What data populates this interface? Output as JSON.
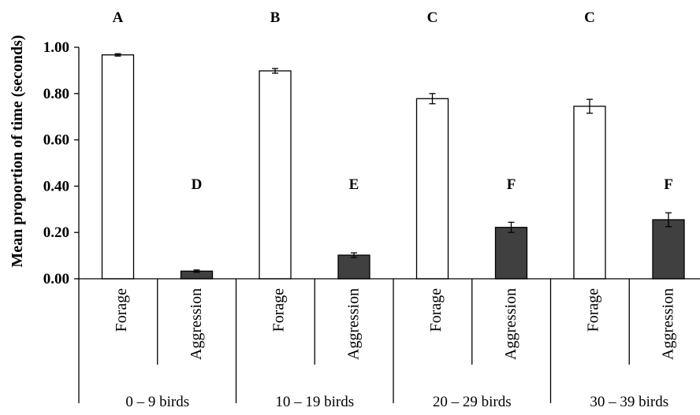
{
  "chart_data": {
    "type": "bar",
    "ylabel": "Mean proportion of time (seconds)",
    "ylim": [
      0,
      1.0
    ],
    "yticks": [
      "0.00",
      "0.20",
      "0.40",
      "0.60",
      "0.80",
      "1.00"
    ],
    "grid": false,
    "groups": [
      {
        "label": "0 – 9 birds",
        "bars": [
          {
            "category": "Forage",
            "value": 0.967,
            "error": 0.005,
            "letter": "A",
            "fill": "#ffffff"
          },
          {
            "category": "Aggression",
            "value": 0.033,
            "error": 0.005,
            "letter": "D",
            "fill": "#404040"
          }
        ]
      },
      {
        "label": "10 – 19 birds",
        "bars": [
          {
            "category": "Forage",
            "value": 0.898,
            "error": 0.01,
            "letter": "B",
            "fill": "#ffffff"
          },
          {
            "category": "Aggression",
            "value": 0.102,
            "error": 0.01,
            "letter": "E",
            "fill": "#404040"
          }
        ]
      },
      {
        "label": "20 – 29 birds",
        "bars": [
          {
            "category": "Forage",
            "value": 0.778,
            "error": 0.022,
            "letter": "C",
            "fill": "#ffffff"
          },
          {
            "category": "Aggression",
            "value": 0.222,
            "error": 0.022,
            "letter": "F",
            "fill": "#404040"
          }
        ]
      },
      {
        "label": "30 – 39 birds",
        "bars": [
          {
            "category": "Forage",
            "value": 0.745,
            "error": 0.03,
            "letter": "C",
            "fill": "#ffffff"
          },
          {
            "category": "Aggression",
            "value": 0.255,
            "error": 0.03,
            "letter": "F",
            "fill": "#404040"
          }
        ]
      }
    ]
  }
}
